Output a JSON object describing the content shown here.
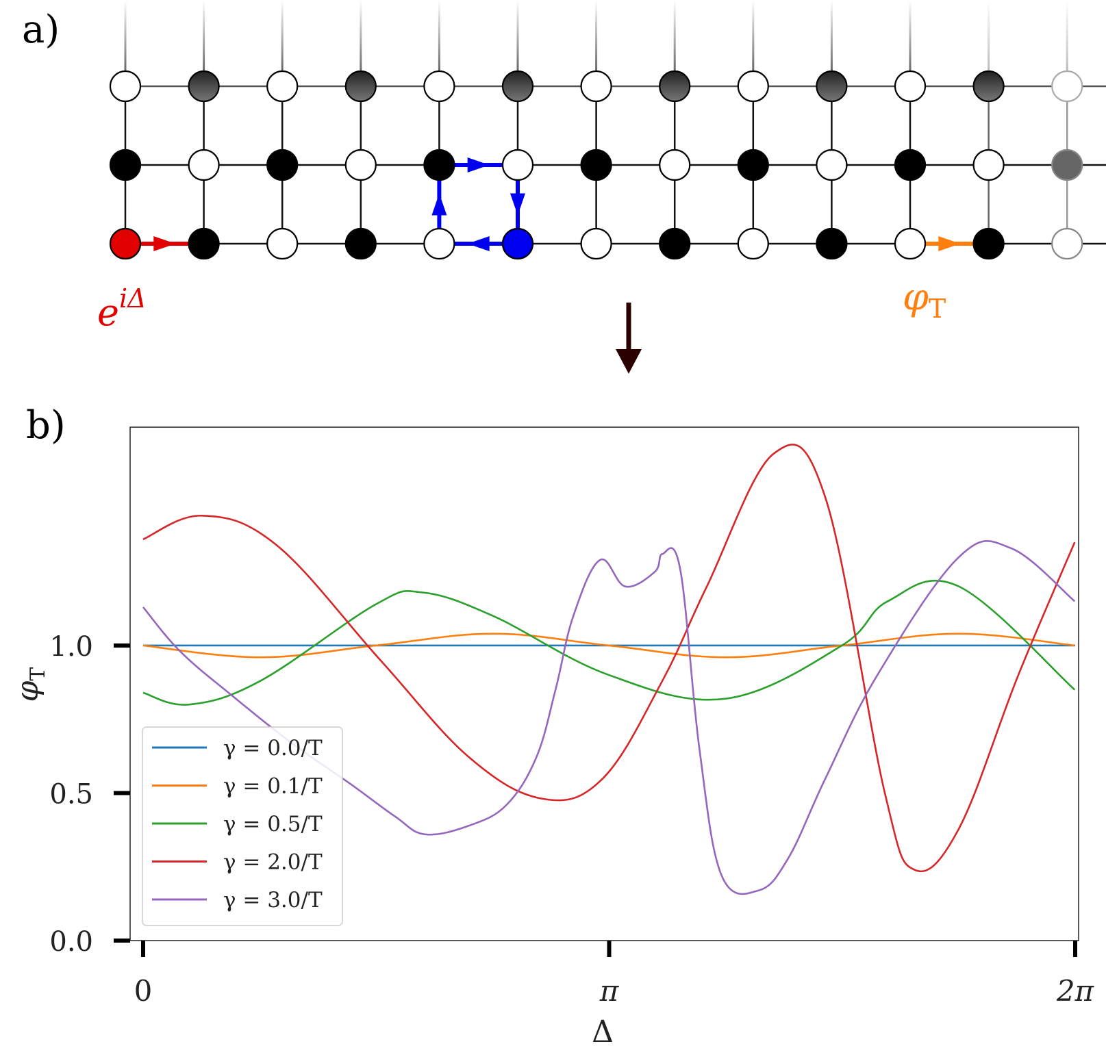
{
  "panel_a": {
    "label": "a)",
    "phase_label": {
      "base": "e",
      "sup": "iΔ"
    },
    "target_label": {
      "base": "φ",
      "sub": "T"
    },
    "colors": {
      "phase": "#e00000",
      "plaquette": "#0000f0",
      "target": "#ff7f0e",
      "arrow": "#2a0000"
    }
  },
  "panel_b": {
    "label": "b)"
  },
  "chart_data": {
    "type": "line",
    "xlabel": "Δ",
    "ylabel": {
      "base": "φ",
      "sub": "T"
    },
    "xlim": [
      0,
      6.2832
    ],
    "ylim": [
      0,
      1.74
    ],
    "xticks": [
      {
        "value": 0,
        "label": "0"
      },
      {
        "value": 3.1416,
        "label": "π"
      },
      {
        "value": 6.2832,
        "label": "2π"
      }
    ],
    "yticks": [
      {
        "value": 0,
        "label": "0.0"
      },
      {
        "value": 0.5,
        "label": "0.5"
      },
      {
        "value": 1.0,
        "label": "1.0"
      }
    ],
    "grid": false,
    "legend_position": "lower-left",
    "series": [
      {
        "name": "γ = 0.0/T",
        "color": "#1f77b4",
        "x": [
          0,
          6.2832
        ],
        "y": [
          1.0,
          1.0
        ]
      },
      {
        "name": "γ = 0.1/T",
        "color": "#ff7f0e",
        "x": [
          0,
          0.79,
          1.57,
          2.36,
          3.14,
          3.93,
          4.71,
          5.5,
          6.28
        ],
        "y": [
          1.0,
          0.96,
          1.0,
          1.04,
          1.0,
          0.96,
          1.0,
          1.04,
          1.0
        ]
      },
      {
        "name": "γ = 0.5/T",
        "color": "#2ca02c",
        "x": [
          0,
          0.31,
          0.79,
          1.57,
          1.88,
          2.36,
          3.14,
          3.93,
          4.71,
          5.02,
          5.5,
          6.28
        ],
        "y": [
          0.84,
          0.8,
          0.88,
          1.14,
          1.18,
          1.1,
          0.9,
          0.82,
          1.0,
          1.15,
          1.2,
          0.85
        ]
      },
      {
        "name": "γ = 2.0/T",
        "color": "#d62728",
        "x": [
          0,
          0.4,
          0.9,
          1.6,
          2.2,
          2.7,
          3.1,
          3.5,
          3.8,
          4.25,
          4.6,
          5.0,
          5.2,
          5.5,
          5.9,
          6.28
        ],
        "y": [
          1.36,
          1.44,
          1.34,
          0.95,
          0.62,
          0.48,
          0.55,
          0.88,
          1.2,
          1.65,
          1.5,
          0.5,
          0.24,
          0.38,
          0.9,
          1.35
        ]
      },
      {
        "name": "γ = 3.0/T",
        "color": "#9467bd",
        "x": [
          0,
          0.25,
          0.6,
          1.0,
          1.4,
          1.7,
          1.9,
          2.2,
          2.45,
          2.65,
          2.78,
          2.9,
          3.08,
          3.25,
          3.45,
          3.5,
          3.62,
          3.75,
          3.9,
          4.15,
          4.35,
          4.6,
          4.95,
          5.5,
          5.85,
          6.28
        ],
        "y": [
          1.13,
          0.98,
          0.83,
          0.67,
          0.53,
          0.42,
          0.36,
          0.39,
          0.46,
          0.62,
          0.85,
          1.1,
          1.29,
          1.2,
          1.25,
          1.31,
          1.26,
          0.65,
          0.22,
          0.17,
          0.28,
          0.55,
          0.9,
          1.3,
          1.33,
          1.15
        ]
      }
    ]
  }
}
